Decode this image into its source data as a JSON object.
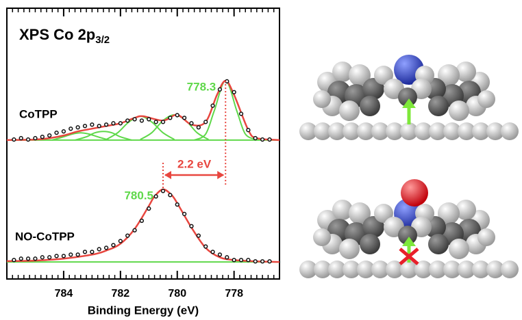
{
  "chart_data": {
    "type": "line",
    "title": {
      "main": "XPS  Co 2p",
      "sub": "3/2"
    },
    "xlabel": "Binding Energy (eV)",
    "xlim": [
      786,
      776.4
    ],
    "xticks": [
      784,
      782,
      780,
      778
    ],
    "minor_tick_step": 0.2,
    "ylim": [
      0,
      100
    ],
    "spectra": [
      {
        "name": "CoTPP",
        "fit": {
          "color": "#e8463f",
          "x": [
            786,
            785,
            784.5,
            784,
            783.5,
            783,
            782.5,
            782,
            781.5,
            781.2,
            780.5,
            780,
            779.5,
            779,
            778.6,
            778.3,
            778,
            777.5,
            777.2,
            776.4
          ],
          "values": [
            51.3,
            51.5,
            52,
            53,
            54.5,
            55.5,
            56.5,
            57.5,
            59.5,
            60.1,
            58.5,
            60.6,
            57,
            58,
            68,
            73.2,
            68,
            55,
            52,
            51.3
          ]
        },
        "components": {
          "color": "#5fd84a",
          "parts": [
            {
              "x": [
                786,
                776.4
              ],
              "values": [
                51.3,
                51.3
              ]
            },
            {
              "x": [
                779.4,
                779,
                778.7,
                778.3,
                777.9,
                777.6,
                777.2
              ],
              "values": [
                51.3,
                53.5,
                62,
                73.2,
                62,
                53.5,
                51.5
              ]
            },
            {
              "x": [
                781.3,
                780.9,
                780.5,
                780.1,
                779.7,
                779.3,
                778.9
              ],
              "values": [
                51.5,
                54,
                58.5,
                60.6,
                58.5,
                54,
                51.5
              ]
            },
            {
              "x": [
                782.5,
                782.1,
                781.7,
                781.3,
                780.9,
                780.5,
                780.1
              ],
              "values": [
                51.5,
                54,
                58,
                60.1,
                58,
                54,
                51.5
              ]
            },
            {
              "x": [
                783.6,
                783.2,
                782.9,
                782.6,
                782.3,
                782,
                781.6
              ],
              "values": [
                51.3,
                52.5,
                54,
                54.5,
                54,
                52.5,
                51.3
              ]
            },
            {
              "x": [
                784.4,
                784,
                783.7,
                783.4,
                783.1,
                782.8,
                782.4
              ],
              "values": [
                51.3,
                52.5,
                53.5,
                54,
                53.5,
                52.5,
                51.3
              ]
            }
          ]
        },
        "points": {
          "color": "#111111",
          "x": [
            785.75,
            785.5,
            785.25,
            785,
            784.75,
            784.5,
            784.25,
            784,
            783.75,
            783.5,
            783.25,
            783,
            782.75,
            782.5,
            782.25,
            782,
            781.75,
            781.5,
            781.25,
            781,
            780.75,
            780.5,
            780.25,
            780,
            779.75,
            779.5,
            779.25,
            779,
            778.75,
            778.5,
            778.25,
            778,
            777.75,
            777.5,
            777.25,
            777,
            776.75
          ],
          "values": [
            51.5,
            52,
            51.5,
            52,
            52.5,
            53,
            54,
            54.5,
            55.5,
            56,
            56.5,
            57,
            56.5,
            57,
            57.5,
            57.5,
            58.5,
            59,
            58.5,
            59,
            58,
            58,
            59.5,
            60.5,
            59.5,
            57.5,
            56,
            58,
            64,
            70,
            73,
            69,
            61,
            55,
            52,
            51.5,
            51.5
          ]
        }
      },
      {
        "name": "NO-CoTPP",
        "fit": {
          "color": "#e8463f",
          "x": [
            786,
            785,
            784,
            783,
            782.5,
            782,
            781.5,
            781,
            780.8,
            780.5,
            780.2,
            780,
            779.5,
            779,
            778.5,
            778,
            777.2,
            776.4
          ],
          "values": [
            6.6,
            6.8,
            7.5,
            9,
            10.5,
            13,
            18.5,
            27,
            30.5,
            33.1,
            31,
            28,
            19,
            11.5,
            8,
            7,
            6.5,
            6.3
          ]
        },
        "components": {
          "color": "#5fd84a",
          "parts": [
            {
              "x": [
                786,
                776.4
              ],
              "values": [
                6.3,
                6.3
              ]
            }
          ]
        },
        "points": {
          "color": "#111111",
          "x": [
            785.75,
            785.5,
            785.25,
            785,
            784.75,
            784.5,
            784.25,
            784,
            783.75,
            783.5,
            783.25,
            783,
            782.75,
            782.5,
            782.25,
            782,
            781.75,
            781.5,
            781.25,
            781,
            780.75,
            780.5,
            780.25,
            780,
            779.75,
            779.5,
            779.25,
            779,
            778.75,
            778.5,
            778.25,
            778,
            777.75,
            777.5,
            777.25,
            777,
            776.75
          ],
          "values": [
            7,
            7.5,
            7.5,
            7.5,
            8,
            8,
            8.5,
            8.5,
            9,
            9,
            10,
            10,
            11,
            11.5,
            12.5,
            14,
            16,
            18,
            21.5,
            26,
            30.5,
            32.5,
            31,
            27.5,
            24,
            19.5,
            16,
            12,
            10,
            9,
            8,
            7,
            7,
            7,
            6.5,
            6.5,
            6.5
          ]
        }
      }
    ],
    "peak_labels": [
      {
        "x": 778.3,
        "y": 73.2,
        "color": "#5fd84a"
      },
      {
        "x": 780.5,
        "y": 33.1,
        "color": "#5fd84a"
      }
    ],
    "shift": {
      "from": 778.3,
      "to": 780.5,
      "label": "2.2 eV",
      "color": "#e8463f"
    }
  }
}
